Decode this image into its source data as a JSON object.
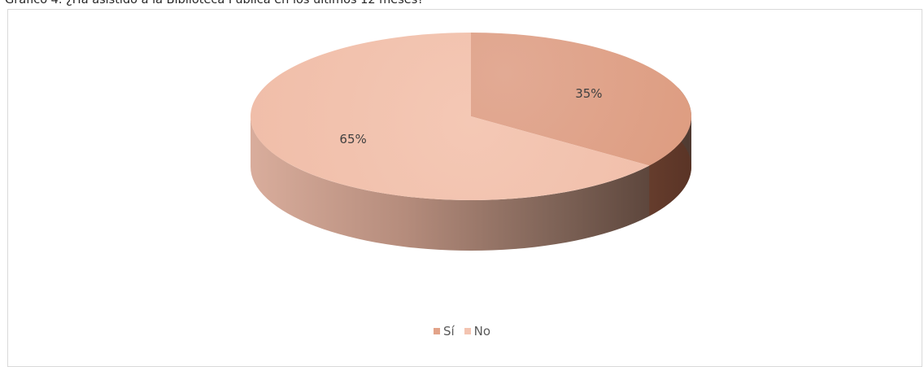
{
  "chart_title": "Gráfico 4. ¿Ha asistido a la Biblioteca Pública en los últimos 12 meses?",
  "chart_data": {
    "type": "pie",
    "title": "Gráfico 4. ¿Ha asistido a la Biblioteca Pública en los últimos 12 meses?",
    "categories": [
      "Sí",
      "No"
    ],
    "values": [
      35,
      65
    ],
    "data_labels": [
      "35%",
      "65%"
    ],
    "legend_position": "bottom",
    "style": "3d",
    "colors": [
      "#e2a389",
      "#f3c4b1"
    ]
  },
  "legend": [
    {
      "label": "Sí",
      "color": "#e2a389"
    },
    {
      "label": "No",
      "color": "#f3c4b1"
    }
  ]
}
